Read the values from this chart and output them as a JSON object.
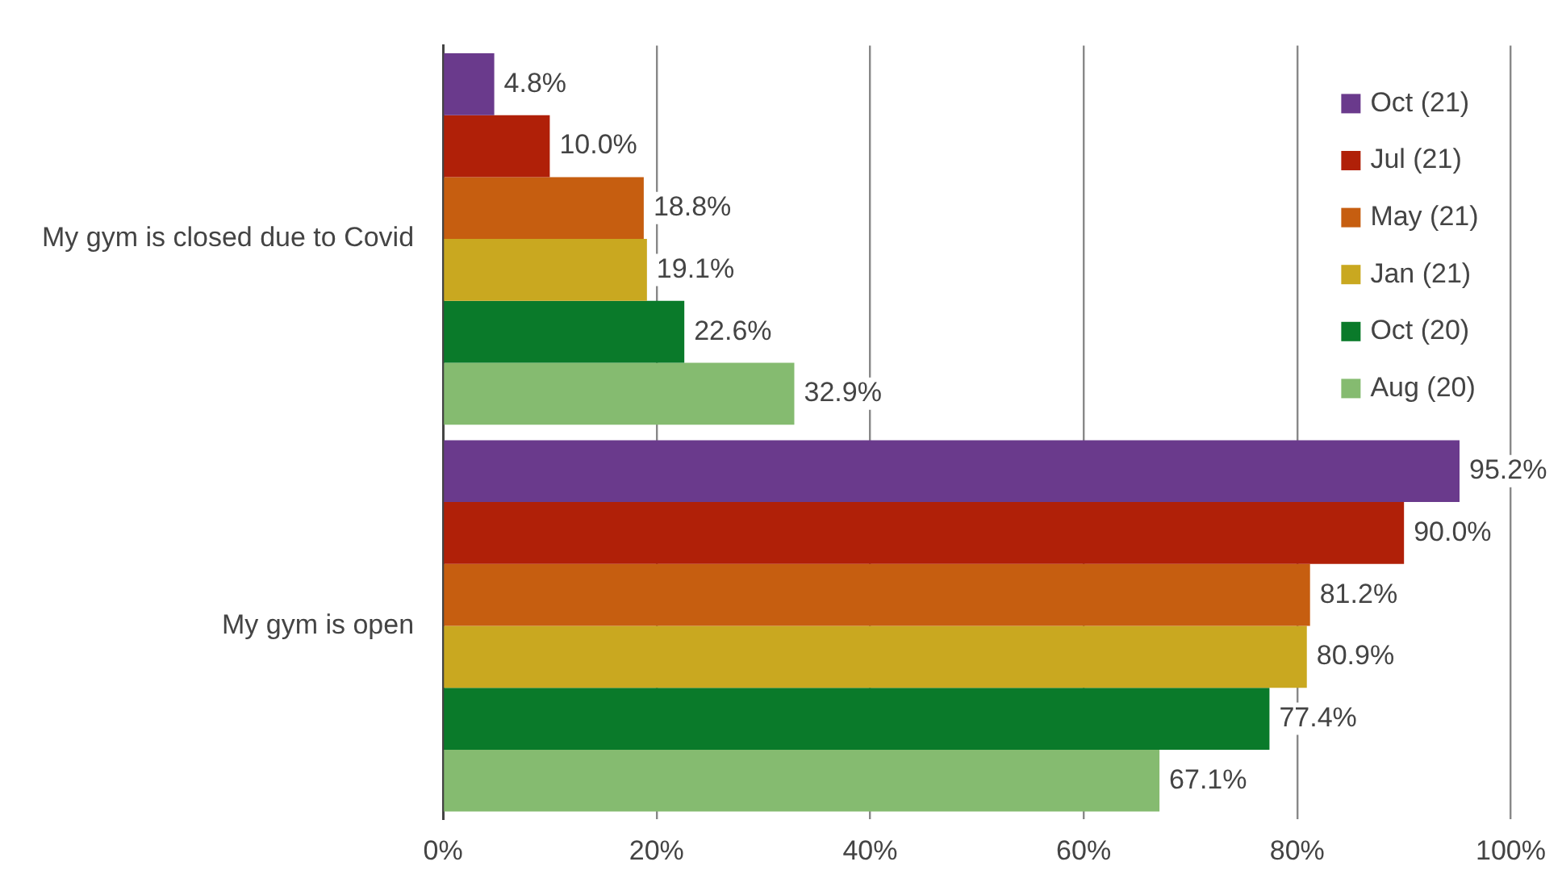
{
  "chart_data": {
    "type": "bar",
    "orientation": "horizontal",
    "categories": [
      "My gym is closed due to Covid",
      "My gym is open"
    ],
    "series": [
      {
        "name": "Oct (21)",
        "color": "#6a3a8c",
        "values": [
          4.8,
          95.2
        ],
        "value_labels": [
          "4.8%",
          "95.2%"
        ]
      },
      {
        "name": "Jul (21)",
        "color": "#b02008",
        "values": [
          10.0,
          90.0
        ],
        "value_labels": [
          "10.0%",
          "90.0%"
        ]
      },
      {
        "name": "May (21)",
        "color": "#c65e10",
        "values": [
          18.8,
          81.2
        ],
        "value_labels": [
          "18.8%",
          "81.2%"
        ]
      },
      {
        "name": "Jan (21)",
        "color": "#c9a820",
        "values": [
          19.1,
          80.9
        ],
        "value_labels": [
          "19.1%",
          "80.9%"
        ]
      },
      {
        "name": "Oct (20)",
        "color": "#0a7a2a",
        "values": [
          22.6,
          77.4
        ],
        "value_labels": [
          "22.6%",
          "77.4%"
        ]
      },
      {
        "name": "Aug (20)",
        "color": "#85bb70",
        "values": [
          32.9,
          67.1
        ],
        "value_labels": [
          "32.9%",
          "67.1%"
        ]
      }
    ],
    "xlim": [
      0,
      100
    ],
    "xticks": [
      {
        "value": 0,
        "label": "0%"
      },
      {
        "value": 20,
        "label": "20%"
      },
      {
        "value": 40,
        "label": "40%"
      },
      {
        "value": 60,
        "label": "60%"
      },
      {
        "value": 80,
        "label": "80%"
      },
      {
        "value": 100,
        "label": "100%"
      }
    ],
    "grid": "x",
    "legend": "top right"
  }
}
